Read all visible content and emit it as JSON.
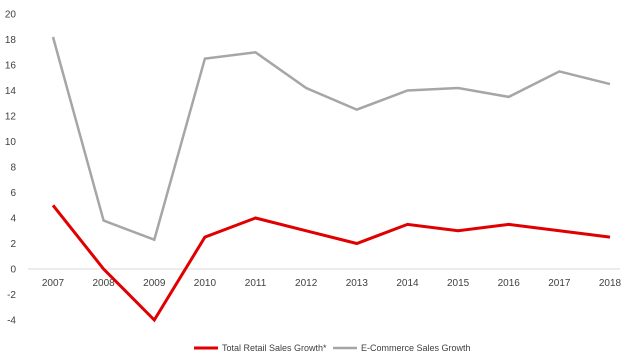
{
  "chart_data": {
    "type": "line",
    "title": "",
    "xlabel": "",
    "ylabel": "",
    "categories": [
      "2007",
      "2008",
      "2009",
      "2010",
      "2011",
      "2012",
      "2013",
      "2014",
      "2015",
      "2016",
      "2017",
      "2018"
    ],
    "ylim": [
      -4,
      20
    ],
    "yticks": [
      -4,
      -2,
      0,
      2,
      4,
      6,
      8,
      10,
      12,
      14,
      16,
      18,
      20
    ],
    "grid": false,
    "legend_position": "bottom",
    "series": [
      {
        "name": "Total Retail Sales Growth*",
        "color": "#e00000",
        "values": [
          5.0,
          0.0,
          -4.0,
          2.5,
          4.0,
          3.0,
          2.0,
          3.5,
          3.0,
          3.5,
          3.0,
          2.5
        ]
      },
      {
        "name": "E-Commerce Sales Growth",
        "color": "#a6a6a6",
        "values": [
          18.2,
          3.8,
          2.3,
          16.5,
          17.0,
          14.2,
          12.5,
          14.0,
          14.2,
          13.5,
          15.5,
          14.5
        ]
      }
    ]
  }
}
